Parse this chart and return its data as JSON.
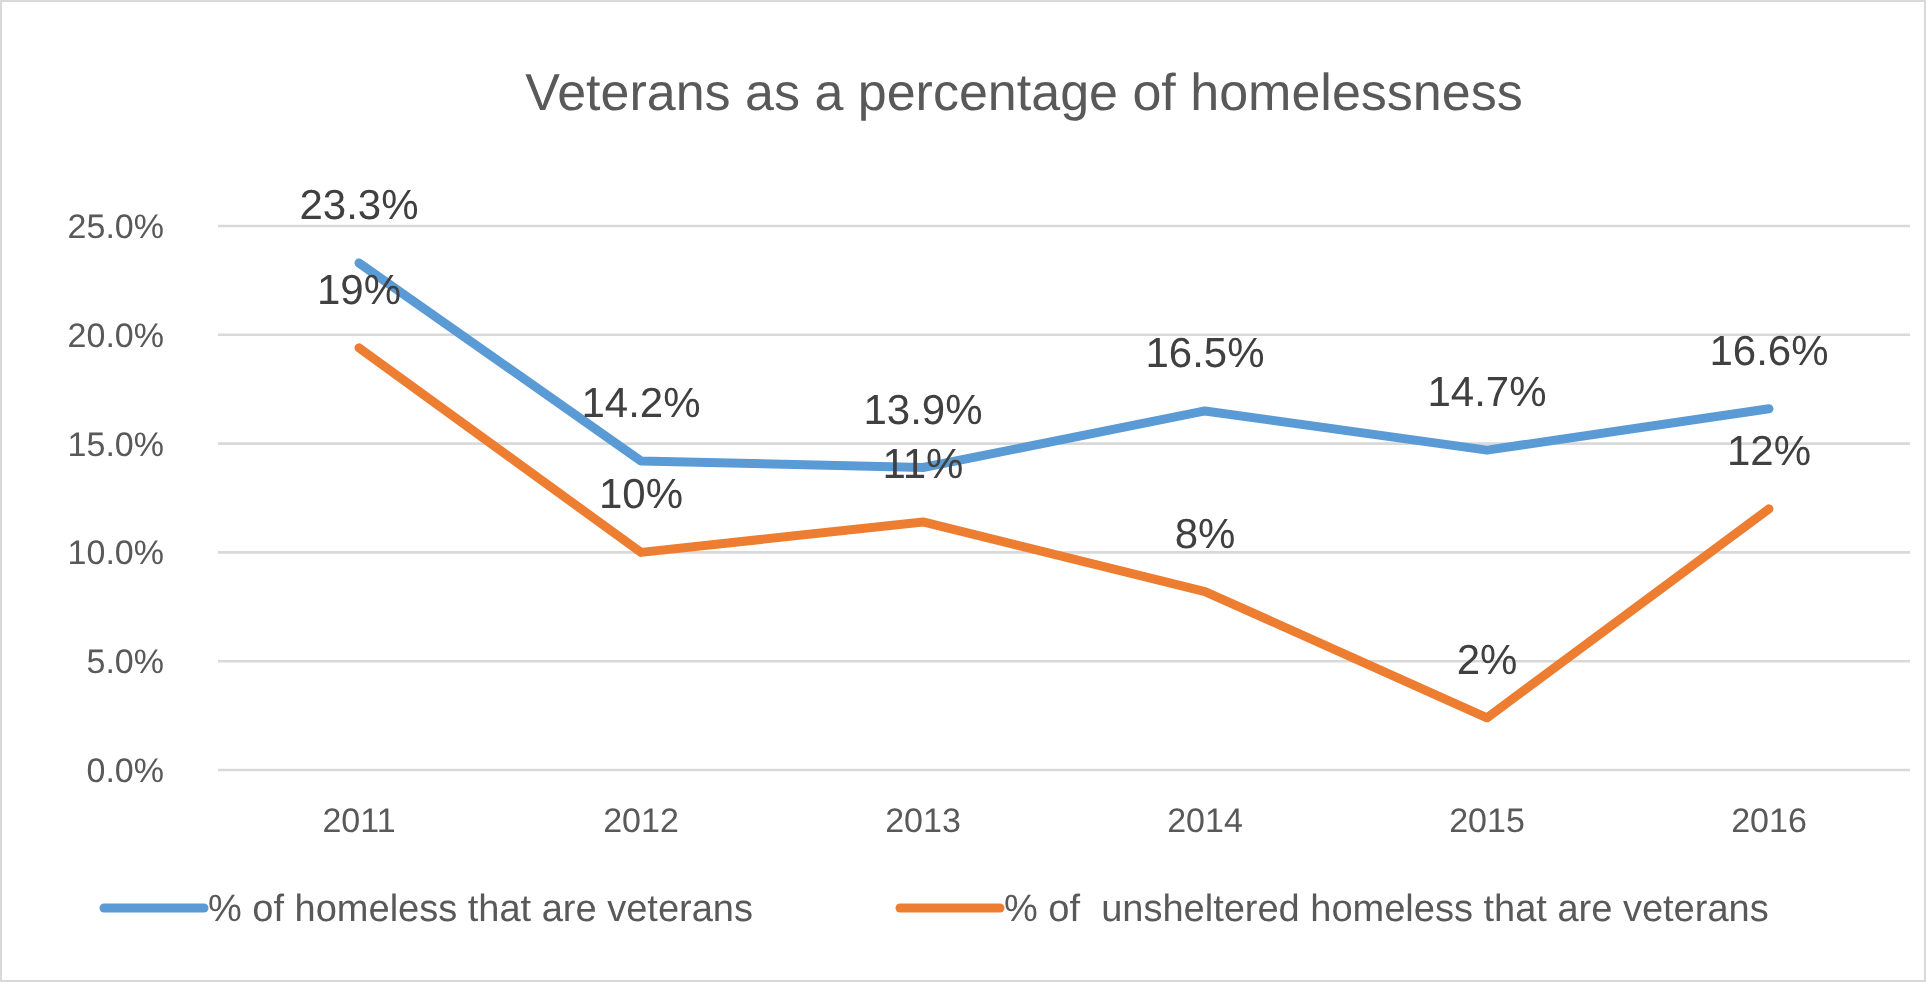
{
  "chart_data": {
    "type": "line",
    "title": "Veterans as a percentage of homelessness",
    "categories": [
      "2011",
      "2012",
      "2013",
      "2014",
      "2015",
      "2016"
    ],
    "series": [
      {
        "name": "% of homeless that are veterans",
        "color": "#5b9bd5",
        "values": [
          23.3,
          14.2,
          13.9,
          16.5,
          14.7,
          16.6
        ],
        "value_labels": [
          "23.3%",
          "14.2%",
          "13.9%",
          "16.5%",
          "14.7%",
          "16.6%"
        ]
      },
      {
        "name": "% of  unsheltered homeless that are veterans",
        "color": "#ed7d31",
        "values": [
          19.4,
          10.0,
          11.4,
          8.2,
          2.4,
          12.0
        ],
        "value_labels": [
          "19%",
          "10%",
          "11%",
          "8%",
          "2%",
          "12%"
        ]
      }
    ],
    "ylim": [
      0,
      25
    ],
    "yticks": [
      {
        "value": 0,
        "label": "0.0%"
      },
      {
        "value": 5,
        "label": "5.0%"
      },
      {
        "value": 10,
        "label": "10.0%"
      },
      {
        "value": 15,
        "label": "15.0%"
      },
      {
        "value": 20,
        "label": "20.0%"
      },
      {
        "value": 25,
        "label": "25.0%"
      }
    ],
    "grid": "y",
    "legend": "bottom",
    "marker": "none",
    "line_style": "solid"
  }
}
